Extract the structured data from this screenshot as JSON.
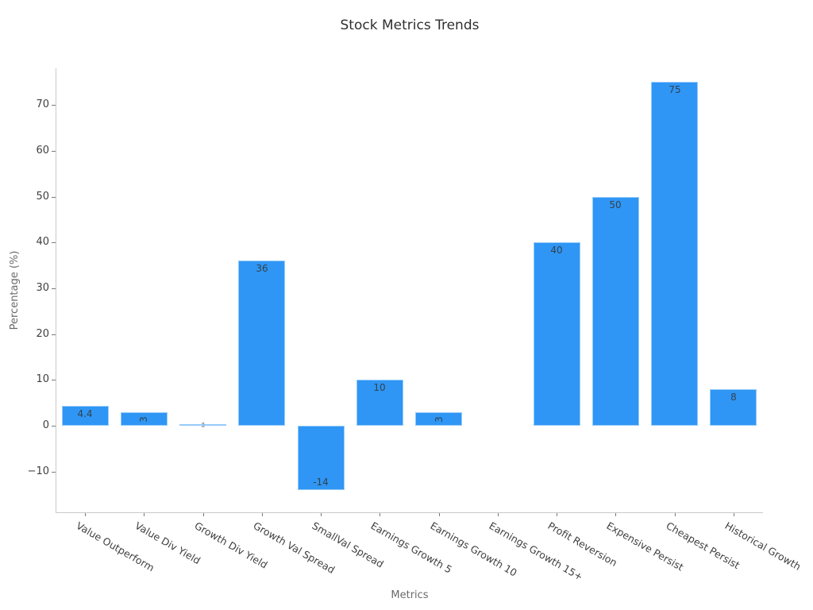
{
  "title": "Stock Metrics Trends",
  "xlabel": "Metrics",
  "ylabel": "Percentage (%)",
  "colors": {
    "bar_fill": "#2F96F5",
    "bar_value_text": "#33424d",
    "tick_text": "#404040",
    "axis_label_text": "#6b6b6b",
    "title_text": "#2f2f2f",
    "spine": "#c9c9c9"
  },
  "chart_data": {
    "type": "bar",
    "title": "Stock Metrics Trends",
    "xlabel": "Metrics",
    "ylabel": "Percentage (%)",
    "categories": [
      "Value Outperform",
      "Value Div Yield",
      "Growth Div Yield",
      "Growth Val Spread",
      "SmallVal Spread",
      "Earnings Growth 5",
      "Earnings Growth 10",
      "Earnings Growth 15+",
      "Profit Reversion",
      "Expensive Persist",
      "Cheapest Persist",
      "Historical Growth"
    ],
    "values": [
      4.4,
      3,
      0.4,
      36,
      -14,
      10,
      3,
      0,
      40,
      50,
      75,
      8
    ],
    "bar_labels": [
      "4.4",
      "3",
      "0.4",
      "36",
      "-14",
      "10",
      "3",
      "",
      "40",
      "50",
      "75",
      "8"
    ],
    "bar_label_rotated": [
      false,
      true,
      true,
      false,
      false,
      false,
      true,
      false,
      false,
      false,
      false,
      false
    ],
    "yticks": [
      -10,
      0,
      10,
      20,
      30,
      40,
      50,
      60,
      70
    ],
    "ytick_labels": [
      "−10",
      "0",
      "10",
      "20",
      "30",
      "40",
      "50",
      "60",
      "70"
    ],
    "ylim": [
      -18.9,
      78.0
    ],
    "grid": false,
    "legend": null,
    "bar_color": "#2F96F5"
  }
}
